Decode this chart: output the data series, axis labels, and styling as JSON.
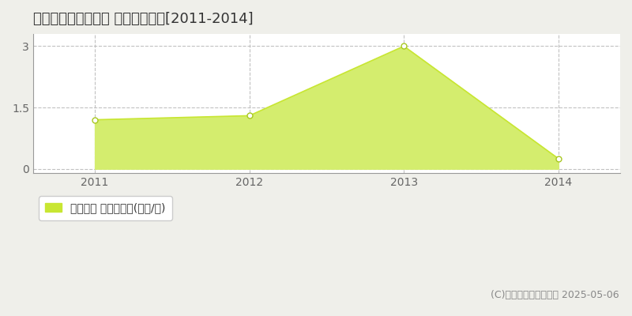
{
  "title": "佐用郡佐用町小赤松 土地価格推移[2011-2014]",
  "years": [
    2011,
    2012,
    2013,
    2014
  ],
  "values": [
    1.2,
    1.3,
    3.0,
    0.25
  ],
  "line_color": "#c8e632",
  "fill_color": "#d4ed6e",
  "marker_color": "#ffffff",
  "marker_edge_color": "#a8c820",
  "yticks": [
    0,
    1.5,
    3
  ],
  "ylim": [
    -0.1,
    3.3
  ],
  "xlim": [
    2010.6,
    2014.4
  ],
  "legend_label": "土地価格 平均坪単価(万円/坪)",
  "copyright": "(C)土地価格ドットコム 2025-05-06",
  "background_color": "#efefea",
  "plot_bg_color": "#ffffff",
  "title_fontsize": 13,
  "legend_fontsize": 10,
  "copyright_fontsize": 9,
  "grid_color": "#bbbbbb",
  "spine_color": "#999999",
  "tick_color": "#666666"
}
